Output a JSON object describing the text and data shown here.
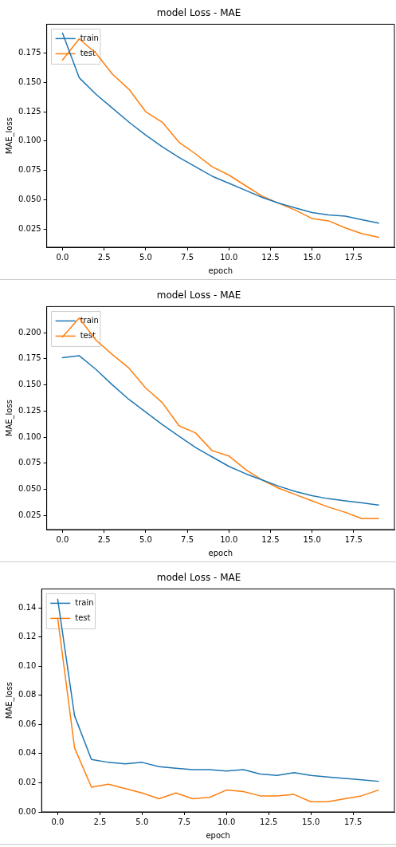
{
  "chart_data": [
    {
      "type": "line",
      "title": "model Loss - MAE",
      "xlabel": "epoch",
      "ylabel": "MAE_loss",
      "x": [
        0,
        1,
        2,
        3,
        4,
        5,
        6,
        7,
        8,
        9,
        10,
        11,
        12,
        13,
        14,
        15,
        16,
        17,
        18,
        19
      ],
      "series": [
        {
          "name": "train",
          "color": "#1f77b4",
          "values": [
            0.192,
            0.154,
            0.14,
            0.128,
            0.116,
            0.105,
            0.095,
            0.086,
            0.078,
            0.07,
            0.064,
            0.058,
            0.052,
            0.047,
            0.043,
            0.039,
            0.037,
            0.036,
            0.033,
            0.03
          ]
        },
        {
          "name": "test",
          "color": "#ff7f0e",
          "values": [
            0.169,
            0.187,
            0.175,
            0.157,
            0.144,
            0.125,
            0.116,
            0.099,
            0.089,
            0.078,
            0.071,
            0.062,
            0.053,
            0.047,
            0.041,
            0.034,
            0.032,
            0.026,
            0.021,
            0.018
          ]
        }
      ],
      "xlim": [
        -0.95,
        19.95
      ],
      "xticks": [
        {
          "value": 0,
          "label": "0.0"
        },
        {
          "value": 2.5,
          "label": "2.5"
        },
        {
          "value": 5,
          "label": "5.0"
        },
        {
          "value": 7.5,
          "label": "7.5"
        },
        {
          "value": 10,
          "label": "10.0"
        },
        {
          "value": 12.5,
          "label": "12.5"
        },
        {
          "value": 15,
          "label": "15.0"
        },
        {
          "value": 17.5,
          "label": "17.5"
        }
      ],
      "ylim": [
        0.0095,
        0.1995
      ],
      "yticks": [
        {
          "value": 0.025,
          "label": "0.025"
        },
        {
          "value": 0.05,
          "label": "0.050"
        },
        {
          "value": 0.075,
          "label": "0.075"
        },
        {
          "value": 0.1,
          "label": "0.100"
        },
        {
          "value": 0.125,
          "label": "0.125"
        },
        {
          "value": 0.15,
          "label": "0.150"
        },
        {
          "value": 0.175,
          "label": "0.175"
        }
      ],
      "grid": false,
      "legend": "top left",
      "marker": "none",
      "line_style": "solid"
    },
    {
      "type": "line",
      "title": "model Loss - MAE",
      "xlabel": "epoch",
      "ylabel": "MAE_loss",
      "x": [
        0,
        1,
        2,
        3,
        4,
        5,
        6,
        7,
        8,
        9,
        10,
        11,
        12,
        13,
        14,
        15,
        16,
        17,
        18,
        19
      ],
      "series": [
        {
          "name": "train",
          "color": "#1f77b4",
          "values": [
            0.176,
            0.178,
            0.165,
            0.15,
            0.136,
            0.124,
            0.112,
            0.101,
            0.09,
            0.081,
            0.072,
            0.065,
            0.059,
            0.053,
            0.048,
            0.044,
            0.041,
            0.039,
            0.037,
            0.035
          ]
        },
        {
          "name": "test",
          "color": "#ff7f0e",
          "values": [
            0.196,
            0.214,
            0.193,
            0.179,
            0.166,
            0.147,
            0.133,
            0.111,
            0.104,
            0.087,
            0.082,
            0.069,
            0.059,
            0.051,
            0.045,
            0.039,
            0.033,
            0.028,
            0.022,
            0.022
          ]
        }
      ],
      "xlim": [
        -0.95,
        19.95
      ],
      "xticks": [
        {
          "value": 0,
          "label": "0.0"
        },
        {
          "value": 2.5,
          "label": "2.5"
        },
        {
          "value": 5,
          "label": "5.0"
        },
        {
          "value": 7.5,
          "label": "7.5"
        },
        {
          "value": 10,
          "label": "10.0"
        },
        {
          "value": 12.5,
          "label": "12.5"
        },
        {
          "value": 15,
          "label": "15.0"
        },
        {
          "value": 17.5,
          "label": "17.5"
        }
      ],
      "ylim": [
        0.0115,
        0.225
      ],
      "yticks": [
        {
          "value": 0.025,
          "label": "0.025"
        },
        {
          "value": 0.05,
          "label": "0.050"
        },
        {
          "value": 0.075,
          "label": "0.075"
        },
        {
          "value": 0.1,
          "label": "0.100"
        },
        {
          "value": 0.125,
          "label": "0.125"
        },
        {
          "value": 0.15,
          "label": "0.150"
        },
        {
          "value": 0.175,
          "label": "0.175"
        },
        {
          "value": 0.2,
          "label": "0.200"
        }
      ],
      "grid": false,
      "legend": "top left",
      "marker": "none",
      "line_style": "solid"
    },
    {
      "type": "line",
      "title": "model Loss - MAE",
      "xlabel": "epoch",
      "ylabel": "MAE_loss",
      "x": [
        0,
        1,
        2,
        3,
        4,
        5,
        6,
        7,
        8,
        9,
        10,
        11,
        12,
        13,
        14,
        15,
        16,
        17,
        18,
        19
      ],
      "series": [
        {
          "name": "train",
          "color": "#1f77b4",
          "values": [
            0.146,
            0.066,
            0.036,
            0.034,
            0.033,
            0.034,
            0.031,
            0.03,
            0.029,
            0.029,
            0.028,
            0.029,
            0.026,
            0.025,
            0.027,
            0.025,
            0.024,
            0.023,
            0.022,
            0.021
          ]
        },
        {
          "name": "test",
          "color": "#ff7f0e",
          "values": [
            0.133,
            0.044,
            0.017,
            0.019,
            0.016,
            0.013,
            0.009,
            0.013,
            0.009,
            0.01,
            0.015,
            0.014,
            0.011,
            0.011,
            0.012,
            0.007,
            0.007,
            0.009,
            0.011,
            0.015
          ]
        }
      ],
      "xlim": [
        -0.95,
        19.95
      ],
      "xticks": [
        {
          "value": 0,
          "label": "0.0"
        },
        {
          "value": 2.5,
          "label": "2.5"
        },
        {
          "value": 5,
          "label": "5.0"
        },
        {
          "value": 7.5,
          "label": "7.5"
        },
        {
          "value": 10,
          "label": "10.0"
        },
        {
          "value": 12.5,
          "label": "12.5"
        },
        {
          "value": 15,
          "label": "15.0"
        },
        {
          "value": 17.5,
          "label": "17.5"
        }
      ],
      "ylim": [
        0,
        0.153
      ],
      "yticks": [
        {
          "value": 0,
          "label": "0.00"
        },
        {
          "value": 0.02,
          "label": "0.02"
        },
        {
          "value": 0.04,
          "label": "0.04"
        },
        {
          "value": 0.06,
          "label": "0.06"
        },
        {
          "value": 0.08,
          "label": "0.08"
        },
        {
          "value": 0.1,
          "label": "0.10"
        },
        {
          "value": 0.12,
          "label": "0.12"
        },
        {
          "value": 0.14,
          "label": "0.14"
        }
      ],
      "grid": false,
      "legend": "top left",
      "marker": "none",
      "line_style": "solid"
    }
  ]
}
